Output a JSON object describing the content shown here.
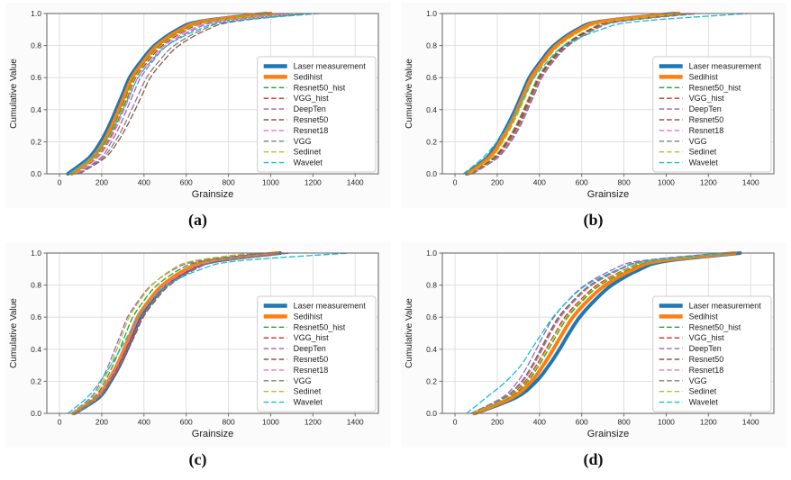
{
  "figure": {
    "xlabel": "Grainsize",
    "ylabel": "Cumulative Value",
    "x_ticks": [
      0,
      200,
      400,
      600,
      800,
      1000,
      1200,
      1400
    ],
    "y_ticks": [
      0.0,
      0.2,
      0.4,
      0.6,
      0.8,
      1.0
    ],
    "xlim": [
      -60,
      1510
    ],
    "ylim": [
      0,
      1.0
    ],
    "grid": true,
    "grid_color": "#d9d9d9",
    "spine_color": "#6e6e6e",
    "tick_label_color": "#262626",
    "legend_border_color": "#cccccc",
    "legend_background": "#ffffff"
  },
  "chart_data": [
    {
      "type": "line",
      "panel_label": "(a)",
      "xlabel": "Grainsize",
      "ylabel": "Cumulative Value",
      "xlim": [
        -60,
        1510
      ],
      "ylim": [
        0,
        1.0
      ],
      "x_ticks": [
        0,
        200,
        400,
        600,
        800,
        1000,
        1200,
        1400
      ],
      "y_ticks": [
        0.0,
        0.2,
        0.4,
        0.6,
        0.8,
        1.0
      ],
      "grid": true,
      "legend_position": "center right",
      "y_levels": [
        0,
        0.1,
        0.2,
        0.3,
        0.4,
        0.5,
        0.6,
        0.7,
        0.8,
        0.9,
        0.95,
        1.0
      ],
      "series": [
        {
          "name": "Laser measurement",
          "color": "#1f77b4",
          "line": "solid",
          "width": 4,
          "x_at_levels": [
            40,
            140,
            195,
            235,
            268,
            300,
            332,
            385,
            450,
            560,
            665,
            980
          ]
        },
        {
          "name": "Sedihist",
          "color": "#ff7f0e",
          "line": "solid",
          "width": 4,
          "x_at_levels": [
            58,
            155,
            210,
            248,
            281,
            312,
            344,
            398,
            462,
            575,
            682,
            1000
          ]
        },
        {
          "name": "Resnet50_hist",
          "color": "#2ca02c",
          "line": "dashed",
          "width": 1.3,
          "x_at_levels": [
            68,
            165,
            220,
            258,
            290,
            321,
            353,
            408,
            475,
            590,
            700,
            1030
          ]
        },
        {
          "name": "VGG_hist",
          "color": "#d62728",
          "line": "dashed",
          "width": 1.3,
          "x_at_levels": [
            74,
            172,
            228,
            266,
            298,
            329,
            361,
            418,
            487,
            605,
            720,
            1060
          ]
        },
        {
          "name": "DeepTen",
          "color": "#9467bd",
          "line": "dashed",
          "width": 1.3,
          "x_at_levels": [
            85,
            195,
            246,
            286,
            318,
            350,
            384,
            440,
            510,
            638,
            758,
            1100
          ]
        },
        {
          "name": "Resnet50",
          "color": "#8c564b",
          "line": "dashed",
          "width": 1.3,
          "x_at_levels": [
            95,
            215,
            276,
            320,
            358,
            394,
            430,
            490,
            565,
            700,
            828,
            1180
          ]
        },
        {
          "name": "Resnet18",
          "color": "#e377c2",
          "line": "dashed",
          "width": 1.3,
          "x_at_levels": [
            80,
            180,
            235,
            273,
            306,
            338,
            371,
            428,
            498,
            622,
            742,
            1090
          ]
        },
        {
          "name": "VGG",
          "color": "#7f7f7f",
          "line": "dashed",
          "width": 1.3,
          "x_at_levels": [
            90,
            205,
            262,
            305,
            341,
            376,
            412,
            470,
            543,
            678,
            802,
            1160
          ]
        },
        {
          "name": "Sedinet",
          "color": "#bcbd22",
          "line": "dashed",
          "width": 1.3,
          "x_at_levels": [
            70,
            168,
            224,
            262,
            294,
            325,
            357,
            412,
            480,
            596,
            710,
            1045
          ]
        },
        {
          "name": "Wavelet",
          "color": "#17becf",
          "line": "dashed",
          "width": 1.3,
          "x_at_levels": [
            45,
            150,
            214,
            262,
            300,
            336,
            372,
            432,
            510,
            658,
            798,
            1230
          ]
        }
      ]
    },
    {
      "type": "line",
      "panel_label": "(b)",
      "xlabel": "Grainsize",
      "ylabel": "Cumulative Value",
      "xlim": [
        -60,
        1510
      ],
      "ylim": [
        0,
        1.0
      ],
      "x_ticks": [
        0,
        200,
        400,
        600,
        800,
        1000,
        1200,
        1400
      ],
      "y_ticks": [
        0.0,
        0.2,
        0.4,
        0.6,
        0.8,
        1.0
      ],
      "grid": true,
      "legend_position": "center right",
      "y_levels": [
        0,
        0.1,
        0.2,
        0.3,
        0.4,
        0.5,
        0.6,
        0.7,
        0.8,
        0.9,
        0.95,
        1.0
      ],
      "series": [
        {
          "name": "Laser measurement",
          "color": "#1f77b4",
          "line": "solid",
          "width": 4,
          "x_at_levels": [
            55,
            152,
            205,
            248,
            285,
            318,
            352,
            405,
            468,
            578,
            688,
            1040
          ]
        },
        {
          "name": "Sedihist",
          "color": "#ff7f0e",
          "line": "solid",
          "width": 4,
          "x_at_levels": [
            62,
            162,
            216,
            258,
            295,
            328,
            362,
            416,
            480,
            592,
            702,
            1060
          ]
        },
        {
          "name": "Resnet50_hist",
          "color": "#2ca02c",
          "line": "dashed",
          "width": 1.3,
          "x_at_levels": [
            72,
            182,
            242,
            288,
            324,
            358,
            392,
            446,
            515,
            635,
            752,
            1105
          ]
        },
        {
          "name": "VGG_hist",
          "color": "#d62728",
          "line": "dashed",
          "width": 1.3,
          "x_at_levels": [
            75,
            186,
            248,
            294,
            330,
            364,
            398,
            452,
            522,
            642,
            760,
            1115
          ]
        },
        {
          "name": "DeepTen",
          "color": "#9467bd",
          "line": "dashed",
          "width": 1.3,
          "x_at_levels": [
            85,
            202,
            265,
            310,
            345,
            378,
            412,
            466,
            538,
            660,
            780,
            1150
          ]
        },
        {
          "name": "Resnet50",
          "color": "#8c564b",
          "line": "dashed",
          "width": 1.3,
          "x_at_levels": [
            78,
            192,
            255,
            300,
            336,
            370,
            404,
            458,
            530,
            650,
            770,
            1130
          ]
        },
        {
          "name": "Resnet18",
          "color": "#e377c2",
          "line": "dashed",
          "width": 1.3,
          "x_at_levels": [
            80,
            196,
            258,
            304,
            340,
            373,
            407,
            462,
            535,
            658,
            778,
            1160
          ]
        },
        {
          "name": "VGG",
          "color": "#7f7f7f",
          "line": "dashed",
          "width": 1.3,
          "x_at_levels": [
            82,
            199,
            262,
            307,
            343,
            376,
            410,
            465,
            537,
            662,
            782,
            1145
          ]
        },
        {
          "name": "Sedinet",
          "color": "#bcbd22",
          "line": "dashed",
          "width": 1.3,
          "x_at_levels": [
            68,
            172,
            228,
            270,
            306,
            340,
            374,
            428,
            495,
            612,
            728,
            1085
          ]
        },
        {
          "name": "Wavelet",
          "color": "#17becf",
          "line": "dashed",
          "width": 1.3,
          "x_at_levels": [
            40,
            132,
            198,
            252,
            296,
            335,
            375,
            438,
            518,
            690,
            862,
            1390
          ]
        }
      ]
    },
    {
      "type": "line",
      "panel_label": "(c)",
      "xlabel": "Grainsize",
      "ylabel": "Cumulative Value",
      "xlim": [
        -60,
        1510
      ],
      "ylim": [
        0,
        1.0
      ],
      "x_ticks": [
        0,
        200,
        400,
        600,
        800,
        1000,
        1200,
        1400
      ],
      "y_ticks": [
        0.0,
        0.2,
        0.4,
        0.6,
        0.8,
        1.0
      ],
      "grid": true,
      "legend_position": "center right",
      "y_levels": [
        0,
        0.1,
        0.2,
        0.3,
        0.4,
        0.5,
        0.6,
        0.7,
        0.8,
        0.9,
        0.95,
        1.0
      ],
      "series": [
        {
          "name": "Laser measurement",
          "color": "#1f77b4",
          "line": "solid",
          "width": 4,
          "x_at_levels": [
            70,
            188,
            242,
            285,
            320,
            352,
            385,
            438,
            505,
            622,
            738,
            1045
          ]
        },
        {
          "name": "Sedihist",
          "color": "#ff7f0e",
          "line": "solid",
          "width": 4,
          "x_at_levels": [
            65,
            178,
            230,
            272,
            306,
            338,
            370,
            422,
            488,
            602,
            715,
            1030
          ]
        },
        {
          "name": "Resnet50_hist",
          "color": "#2ca02c",
          "line": "dashed",
          "width": 1.3,
          "x_at_levels": [
            60,
            165,
            215,
            253,
            285,
            315,
            347,
            398,
            462,
            572,
            680,
            975
          ]
        },
        {
          "name": "VGG_hist",
          "color": "#d62728",
          "line": "dashed",
          "width": 1.3,
          "x_at_levels": [
            68,
            180,
            235,
            278,
            314,
            348,
            382,
            436,
            505,
            625,
            740,
            1060
          ]
        },
        {
          "name": "DeepTen",
          "color": "#9467bd",
          "line": "dashed",
          "width": 1.3,
          "x_at_levels": [
            55,
            148,
            196,
            232,
            262,
            292,
            322,
            372,
            435,
            545,
            655,
            950
          ]
        },
        {
          "name": "Resnet50",
          "color": "#8c564b",
          "line": "dashed",
          "width": 1.3,
          "x_at_levels": [
            72,
            188,
            245,
            290,
            327,
            362,
            397,
            452,
            522,
            645,
            762,
            1090
          ]
        },
        {
          "name": "Resnet18",
          "color": "#e377c2",
          "line": "dashed",
          "width": 1.3,
          "x_at_levels": [
            66,
            176,
            230,
            273,
            309,
            343,
            377,
            431,
            500,
            618,
            732,
            1040
          ]
        },
        {
          "name": "VGG",
          "color": "#7f7f7f",
          "line": "dashed",
          "width": 1.3,
          "x_at_levels": [
            70,
            184,
            240,
            284,
            320,
            355,
            390,
            445,
            515,
            638,
            755,
            1080
          ]
        },
        {
          "name": "Sedinet",
          "color": "#bcbd22",
          "line": "dashed",
          "width": 1.3,
          "x_at_levels": [
            58,
            156,
            205,
            242,
            272,
            300,
            330,
            378,
            438,
            535,
            630,
            900
          ]
        },
        {
          "name": "Wavelet",
          "color": "#17becf",
          "line": "dashed",
          "width": 1.3,
          "x_at_levels": [
            40,
            132,
            192,
            243,
            288,
            330,
            373,
            432,
            510,
            672,
            840,
            1370
          ]
        }
      ]
    },
    {
      "type": "line",
      "panel_label": "(d)",
      "xlabel": "Grainsize",
      "ylabel": "Cumulative Value",
      "xlim": [
        -60,
        1510
      ],
      "ylim": [
        0,
        1.0
      ],
      "x_ticks": [
        0,
        200,
        400,
        600,
        800,
        1000,
        1200,
        1400
      ],
      "y_ticks": [
        0.0,
        0.2,
        0.4,
        0.6,
        0.8,
        1.0
      ],
      "grid": true,
      "legend_position": "center right",
      "y_levels": [
        0,
        0.1,
        0.2,
        0.3,
        0.4,
        0.5,
        0.6,
        0.7,
        0.8,
        0.9,
        0.95,
        1.0
      ],
      "series": [
        {
          "name": "Laser measurement",
          "color": "#1f77b4",
          "line": "solid",
          "width": 4,
          "x_at_levels": [
            95,
            290,
            385,
            445,
            495,
            540,
            590,
            658,
            742,
            878,
            998,
            1350
          ]
        },
        {
          "name": "Sedihist",
          "color": "#ff7f0e",
          "line": "solid",
          "width": 4,
          "x_at_levels": [
            90,
            272,
            362,
            418,
            465,
            510,
            558,
            626,
            712,
            848,
            965,
            1325
          ]
        },
        {
          "name": "Resnet50_hist",
          "color": "#2ca02c",
          "line": "dashed",
          "width": 1.3,
          "x_at_levels": [
            85,
            258,
            345,
            398,
            443,
            487,
            534,
            602,
            688,
            825,
            942,
            1305
          ]
        },
        {
          "name": "VGG_hist",
          "color": "#d62728",
          "line": "dashed",
          "width": 1.3,
          "x_at_levels": [
            82,
            248,
            332,
            385,
            430,
            474,
            520,
            588,
            672,
            810,
            928,
            1292
          ]
        },
        {
          "name": "DeepTen",
          "color": "#9467bd",
          "line": "dashed",
          "width": 1.3,
          "x_at_levels": [
            75,
            225,
            298,
            345,
            385,
            424,
            468,
            532,
            615,
            752,
            872,
            1262
          ]
        },
        {
          "name": "Resnet50",
          "color": "#8c564b",
          "line": "dashed",
          "width": 1.3,
          "x_at_levels": [
            78,
            235,
            315,
            365,
            405,
            445,
            490,
            556,
            640,
            778,
            898,
            1275
          ]
        },
        {
          "name": "Resnet18",
          "color": "#e377c2",
          "line": "dashed",
          "width": 1.3,
          "x_at_levels": [
            80,
            240,
            322,
            372,
            414,
            454,
            500,
            566,
            650,
            788,
            908,
            1282
          ]
        },
        {
          "name": "VGG",
          "color": "#7f7f7f",
          "line": "dashed",
          "width": 1.3,
          "x_at_levels": [
            79,
            238,
            318,
            368,
            410,
            450,
            495,
            560,
            645,
            782,
            902,
            1278
          ]
        },
        {
          "name": "Sedinet",
          "color": "#bcbd22",
          "line": "dashed",
          "width": 1.3,
          "x_at_levels": [
            83,
            252,
            338,
            390,
            435,
            478,
            526,
            594,
            680,
            816,
            934,
            1298
          ]
        },
        {
          "name": "Wavelet",
          "color": "#17becf",
          "line": "dashed",
          "width": 1.3,
          "x_at_levels": [
            55,
            150,
            242,
            312,
            362,
            412,
            464,
            534,
            622,
            778,
            918,
            1312
          ]
        }
      ]
    }
  ]
}
